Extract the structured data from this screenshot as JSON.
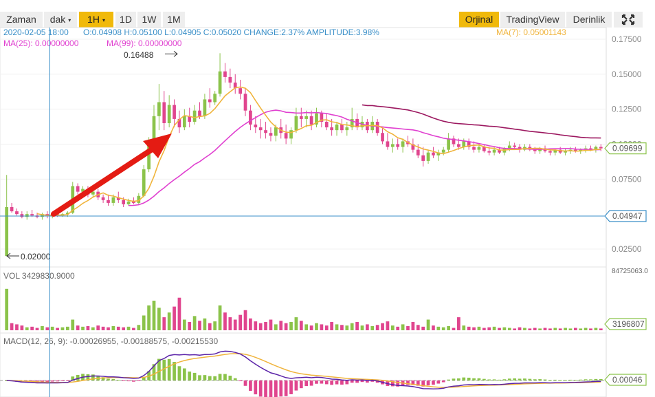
{
  "toolbar": {
    "left": [
      {
        "label": "Zaman",
        "active": false
      },
      {
        "label": "dak",
        "active": false,
        "caret": "▾"
      },
      {
        "label": "1H",
        "active": true,
        "caret": "▾"
      },
      {
        "label": "1D",
        "active": false
      },
      {
        "label": "1W",
        "active": false
      },
      {
        "label": "1M",
        "active": false
      }
    ],
    "right": [
      {
        "label": "Orjinal",
        "active": true
      },
      {
        "label": "TradingView",
        "active": false
      },
      {
        "label": "Derinlik",
        "active": false
      }
    ],
    "fullscreen_icon": "fullscreen-icon"
  },
  "info": {
    "date": "2020-02-05 18:00",
    "ohlc": "O:0.04908 H:0.05100 L:0.04905 C:0.05020 CHANGE:2.37% AMPLITUDE:3.98%",
    "ma7": "MA(7): 0.05001143",
    "ma25": "MA(25): 0.00000000",
    "ma99": "MA(99): 0.00000000"
  },
  "annotations": {
    "high": "0.16488",
    "low": "0.02000"
  },
  "price_axis": {
    "ticks": [
      "0.17500",
      "0.15000",
      "0.12500",
      "0.10000",
      "0.07500",
      "0.02500"
    ],
    "tags": [
      {
        "label": "0.09699",
        "color": "#8bc34a"
      },
      {
        "label": "0.04947",
        "color": "#3a8fc8"
      }
    ]
  },
  "volume": {
    "label": "VOL 3429830.9000",
    "max_label": "84725063.0",
    "tag": "3196807"
  },
  "macd": {
    "label": "MACD(12, 26, 9): -0.00026955, -0.00188575, -0.00215530",
    "tag": "0.00046"
  },
  "colors": {
    "up": "#8bc34a",
    "down": "#e0458e",
    "ma7": "#f0b43c",
    "ma25": "#e040d0",
    "ma99": "#9c1860",
    "crosshair": "#3a8fc8",
    "arrow": "#e41b13",
    "macd_line": "#5b23a8",
    "signal_line": "#f0b43c"
  },
  "chart_data": [
    {
      "type": "candlestick",
      "title": "",
      "ylim": [
        0.015,
        0.18
      ],
      "y_ticks": [
        0.175,
        0.15,
        0.125,
        0.1,
        0.075,
        0.025
      ],
      "grid": true,
      "candles": [
        [
          0.02,
          0.078,
          0.02,
          0.055
        ],
        [
          0.055,
          0.058,
          0.051,
          0.052
        ],
        [
          0.052,
          0.054,
          0.049,
          0.05
        ],
        [
          0.05,
          0.052,
          0.047,
          0.048
        ],
        [
          0.048,
          0.052,
          0.046,
          0.05
        ],
        [
          0.05,
          0.053,
          0.048,
          0.049
        ],
        [
          0.049,
          0.051,
          0.047,
          0.048
        ],
        [
          0.048,
          0.051,
          0.046,
          0.05
        ],
        [
          0.05,
          0.052,
          0.047,
          0.049
        ],
        [
          0.049,
          0.051,
          0.047,
          0.05
        ],
        [
          0.05,
          0.052,
          0.048,
          0.049
        ],
        [
          0.049,
          0.051,
          0.048,
          0.05
        ],
        [
          0.05,
          0.052,
          0.048,
          0.051
        ],
        [
          0.051,
          0.073,
          0.05,
          0.07
        ],
        [
          0.07,
          0.072,
          0.064,
          0.066
        ],
        [
          0.066,
          0.07,
          0.064,
          0.068
        ],
        [
          0.068,
          0.07,
          0.062,
          0.064
        ],
        [
          0.064,
          0.068,
          0.062,
          0.066
        ],
        [
          0.066,
          0.068,
          0.06,
          0.062
        ],
        [
          0.062,
          0.064,
          0.058,
          0.06
        ],
        [
          0.06,
          0.064,
          0.056,
          0.058
        ],
        [
          0.058,
          0.064,
          0.056,
          0.062
        ],
        [
          0.062,
          0.066,
          0.058,
          0.06
        ],
        [
          0.06,
          0.062,
          0.055,
          0.057
        ],
        [
          0.057,
          0.061,
          0.056,
          0.059
        ],
        [
          0.059,
          0.062,
          0.057,
          0.058
        ],
        [
          0.058,
          0.065,
          0.057,
          0.063
        ],
        [
          0.063,
          0.085,
          0.062,
          0.082
        ],
        [
          0.082,
          0.105,
          0.08,
          0.1
        ],
        [
          0.1,
          0.128,
          0.095,
          0.12
        ],
        [
          0.12,
          0.143,
          0.11,
          0.13
        ],
        [
          0.13,
          0.138,
          0.11,
          0.115
        ],
        [
          0.115,
          0.135,
          0.112,
          0.128
        ],
        [
          0.128,
          0.132,
          0.112,
          0.118
        ],
        [
          0.118,
          0.124,
          0.108,
          0.112
        ],
        [
          0.112,
          0.125,
          0.11,
          0.12
        ],
        [
          0.12,
          0.126,
          0.112,
          0.116
        ],
        [
          0.116,
          0.128,
          0.114,
          0.124
        ],
        [
          0.124,
          0.13,
          0.118,
          0.12
        ],
        [
          0.12,
          0.136,
          0.118,
          0.132
        ],
        [
          0.132,
          0.14,
          0.126,
          0.13
        ],
        [
          0.13,
          0.138,
          0.128,
          0.136
        ],
        [
          0.136,
          0.165,
          0.134,
          0.152
        ],
        [
          0.152,
          0.158,
          0.144,
          0.148
        ],
        [
          0.148,
          0.154,
          0.14,
          0.144
        ],
        [
          0.144,
          0.15,
          0.136,
          0.14
        ],
        [
          0.14,
          0.146,
          0.132,
          0.136
        ],
        [
          0.136,
          0.14,
          0.12,
          0.124
        ],
        [
          0.124,
          0.128,
          0.11,
          0.114
        ],
        [
          0.114,
          0.12,
          0.108,
          0.112
        ],
        [
          0.112,
          0.118,
          0.104,
          0.11
        ],
        [
          0.11,
          0.116,
          0.104,
          0.108
        ],
        [
          0.108,
          0.112,
          0.102,
          0.106
        ],
        [
          0.106,
          0.114,
          0.102,
          0.112
        ],
        [
          0.112,
          0.118,
          0.104,
          0.108
        ],
        [
          0.108,
          0.114,
          0.1,
          0.104
        ],
        [
          0.104,
          0.112,
          0.1,
          0.11
        ],
        [
          0.11,
          0.126,
          0.108,
          0.12
        ],
        [
          0.12,
          0.126,
          0.112,
          0.118
        ],
        [
          0.118,
          0.124,
          0.112,
          0.12
        ],
        [
          0.12,
          0.124,
          0.11,
          0.114
        ],
        [
          0.114,
          0.126,
          0.112,
          0.122
        ],
        [
          0.122,
          0.124,
          0.112,
          0.116
        ],
        [
          0.116,
          0.122,
          0.11,
          0.112
        ],
        [
          0.112,
          0.118,
          0.106,
          0.11
        ],
        [
          0.11,
          0.116,
          0.106,
          0.114
        ],
        [
          0.114,
          0.118,
          0.108,
          0.11
        ],
        [
          0.11,
          0.116,
          0.106,
          0.112
        ],
        [
          0.112,
          0.126,
          0.11,
          0.118
        ],
        [
          0.118,
          0.122,
          0.11,
          0.112
        ],
        [
          0.112,
          0.12,
          0.11,
          0.116
        ],
        [
          0.116,
          0.118,
          0.108,
          0.11
        ],
        [
          0.11,
          0.12,
          0.108,
          0.116
        ],
        [
          0.116,
          0.118,
          0.106,
          0.108
        ],
        [
          0.108,
          0.112,
          0.1,
          0.102
        ],
        [
          0.102,
          0.108,
          0.096,
          0.098
        ],
        [
          0.098,
          0.104,
          0.094,
          0.1
        ],
        [
          0.1,
          0.104,
          0.096,
          0.098
        ],
        [
          0.098,
          0.104,
          0.094,
          0.102
        ],
        [
          0.102,
          0.106,
          0.098,
          0.1
        ],
        [
          0.1,
          0.104,
          0.094,
          0.096
        ],
        [
          0.096,
          0.1,
          0.09,
          0.092
        ],
        [
          0.092,
          0.098,
          0.084,
          0.088
        ],
        [
          0.088,
          0.096,
          0.086,
          0.094
        ],
        [
          0.094,
          0.098,
          0.09,
          0.092
        ],
        [
          0.092,
          0.096,
          0.088,
          0.094
        ],
        [
          0.094,
          0.098,
          0.092,
          0.096
        ],
        [
          0.096,
          0.108,
          0.094,
          0.104
        ],
        [
          0.104,
          0.106,
          0.098,
          0.1
        ],
        [
          0.1,
          0.104,
          0.096,
          0.098
        ],
        [
          0.098,
          0.104,
          0.096,
          0.102
        ],
        [
          0.102,
          0.104,
          0.096,
          0.098
        ],
        [
          0.098,
          0.102,
          0.094,
          0.096
        ],
        [
          0.096,
          0.1,
          0.094,
          0.098
        ],
        [
          0.098,
          0.1,
          0.094,
          0.095
        ],
        [
          0.095,
          0.098,
          0.092,
          0.094
        ],
        [
          0.094,
          0.098,
          0.092,
          0.096
        ],
        [
          0.096,
          0.098,
          0.093,
          0.094
        ],
        [
          0.094,
          0.098,
          0.092,
          0.097
        ],
        [
          0.097,
          0.102,
          0.095,
          0.099
        ],
        [
          0.099,
          0.101,
          0.096,
          0.098
        ],
        [
          0.098,
          0.1,
          0.094,
          0.096
        ],
        [
          0.096,
          0.1,
          0.095,
          0.098
        ],
        [
          0.098,
          0.1,
          0.095,
          0.096
        ],
        [
          0.096,
          0.098,
          0.093,
          0.095
        ],
        [
          0.095,
          0.098,
          0.093,
          0.097
        ],
        [
          0.097,
          0.099,
          0.094,
          0.095
        ],
        [
          0.095,
          0.097,
          0.092,
          0.094
        ],
        [
          0.094,
          0.097,
          0.092,
          0.096
        ],
        [
          0.096,
          0.098,
          0.093,
          0.094
        ],
        [
          0.094,
          0.097,
          0.092,
          0.095
        ],
        [
          0.095,
          0.098,
          0.093,
          0.096
        ],
        [
          0.096,
          0.098,
          0.094,
          0.095
        ],
        [
          0.095,
          0.097,
          0.093,
          0.096
        ],
        [
          0.096,
          0.099,
          0.094,
          0.097
        ],
        [
          0.097,
          0.099,
          0.095,
          0.096
        ],
        [
          0.096,
          0.099,
          0.094,
          0.098
        ],
        [
          0.098,
          0.1,
          0.095,
          0.097
        ]
      ],
      "ma_periods": [
        7,
        25,
        99
      ]
    },
    {
      "type": "bar",
      "title": "",
      "ylim": [
        0,
        84725063
      ],
      "values": [
        70,
        12,
        10,
        8,
        5,
        6,
        4,
        7,
        5,
        6,
        4,
        5,
        6,
        18,
        8,
        6,
        7,
        5,
        8,
        6,
        5,
        7,
        6,
        5,
        6,
        4,
        9,
        25,
        42,
        50,
        38,
        22,
        30,
        40,
        55,
        18,
        14,
        24,
        16,
        20,
        12,
        15,
        42,
        30,
        22,
        18,
        26,
        34,
        20,
        15,
        12,
        14,
        18,
        10,
        16,
        12,
        14,
        22,
        16,
        10,
        8,
        12,
        10,
        8,
        14,
        10,
        9,
        8,
        12,
        14,
        8,
        10,
        7,
        9,
        12,
        15,
        8,
        6,
        10,
        7,
        14,
        9,
        6,
        18,
        8,
        6,
        5,
        7,
        4,
        22,
        8,
        6,
        5,
        6,
        4,
        5,
        6,
        4,
        5,
        4,
        3,
        5,
        4,
        3,
        4,
        3,
        4,
        3,
        4,
        3,
        4,
        3,
        4,
        3,
        4,
        3,
        4,
        3,
        5,
        4
      ],
      "value_unit": "percent of panel max"
    },
    {
      "type": "bar",
      "title": "",
      "series": [
        {
          "name": "MACD",
          "values": [
            0.0
          ]
        },
        {
          "name": "Signal",
          "values": [
            0.0
          ]
        }
      ]
    }
  ]
}
